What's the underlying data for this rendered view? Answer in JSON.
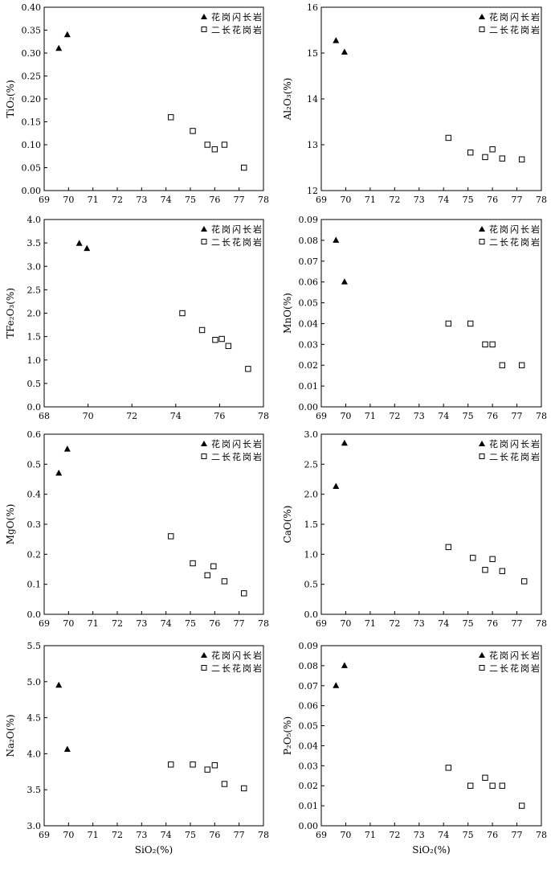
{
  "legend": {
    "granodiorite": "花岗闪长岩",
    "monzogranite": "二长花岗岩"
  },
  "chart_data": [
    {
      "type": "scatter",
      "ylabel": "TiO₂(%)",
      "xlabel": "",
      "xlim": [
        69,
        78
      ],
      "xticks": [
        69,
        70,
        71,
        72,
        73,
        74,
        75,
        76,
        77,
        78
      ],
      "ylim": [
        0,
        0.4
      ],
      "yticks": [
        0,
        0.05,
        0.1,
        0.15,
        0.2,
        0.25,
        0.3,
        0.35,
        0.4
      ],
      "ydec": 2,
      "legend_position": "top-right",
      "series": [
        {
          "name": "花岗闪长岩",
          "marker": "triangle",
          "points": [
            [
              69.6,
              0.31
            ],
            [
              69.95,
              0.34
            ]
          ]
        },
        {
          "name": "二长花岗岩",
          "marker": "square",
          "points": [
            [
              74.2,
              0.16
            ],
            [
              75.1,
              0.13
            ],
            [
              75.7,
              0.1
            ],
            [
              76.0,
              0.09
            ],
            [
              76.4,
              0.1
            ],
            [
              77.2,
              0.05
            ]
          ]
        }
      ]
    },
    {
      "type": "scatter",
      "ylabel": "Al₂O₃(%)",
      "xlabel": "",
      "xlim": [
        69,
        78
      ],
      "xticks": [
        69,
        70,
        71,
        72,
        73,
        74,
        75,
        76,
        77,
        78
      ],
      "ylim": [
        12,
        16
      ],
      "yticks": [
        12,
        13,
        14,
        15,
        16
      ],
      "ydec": 0,
      "legend_position": "top-right",
      "series": [
        {
          "name": "花岗闪长岩",
          "marker": "triangle",
          "points": [
            [
              69.6,
              15.27
            ],
            [
              69.95,
              15.02
            ]
          ]
        },
        {
          "name": "二长花岗岩",
          "marker": "square",
          "points": [
            [
              74.2,
              13.15
            ],
            [
              75.1,
              12.83
            ],
            [
              75.7,
              12.73
            ],
            [
              76.0,
              12.9
            ],
            [
              76.4,
              12.7
            ],
            [
              77.2,
              12.68
            ]
          ]
        }
      ]
    },
    {
      "type": "scatter",
      "ylabel": "TFe₂O₃(%)",
      "xlabel": "",
      "xlim": [
        68,
        78
      ],
      "xticks": [
        68,
        70,
        72,
        74,
        76,
        78
      ],
      "ylim": [
        0,
        4
      ],
      "yticks": [
        0,
        0.5,
        1,
        1.5,
        2,
        2.5,
        3,
        3.5,
        4
      ],
      "ydec": 1,
      "legend_position": "top-right",
      "series": [
        {
          "name": "花岗闪长岩",
          "marker": "triangle",
          "points": [
            [
              69.6,
              3.49
            ],
            [
              69.95,
              3.38
            ]
          ]
        },
        {
          "name": "二长花岗岩",
          "marker": "square",
          "points": [
            [
              74.3,
              2.0
            ],
            [
              75.2,
              1.64
            ],
            [
              75.8,
              1.43
            ],
            [
              76.1,
              1.45
            ],
            [
              76.4,
              1.3
            ],
            [
              77.3,
              0.81
            ]
          ]
        }
      ]
    },
    {
      "type": "scatter",
      "ylabel": "MnO(%)",
      "xlabel": "",
      "xlim": [
        69,
        78
      ],
      "xticks": [
        69,
        70,
        71,
        72,
        73,
        74,
        75,
        76,
        77,
        78
      ],
      "ylim": [
        0,
        0.09
      ],
      "yticks": [
        0,
        0.01,
        0.02,
        0.03,
        0.04,
        0.05,
        0.06,
        0.07,
        0.08,
        0.09
      ],
      "ydec": 2,
      "legend_position": "top-right",
      "series": [
        {
          "name": "花岗闪长岩",
          "marker": "triangle",
          "points": [
            [
              69.6,
              0.08
            ],
            [
              69.95,
              0.06
            ]
          ]
        },
        {
          "name": "二长花岗岩",
          "marker": "square",
          "points": [
            [
              74.2,
              0.04
            ],
            [
              75.1,
              0.04
            ],
            [
              75.7,
              0.03
            ],
            [
              76.0,
              0.03
            ],
            [
              76.4,
              0.02
            ],
            [
              77.2,
              0.02
            ]
          ]
        }
      ]
    },
    {
      "type": "scatter",
      "ylabel": "MgO(%)",
      "xlabel": "",
      "xlim": [
        69,
        78
      ],
      "xticks": [
        69,
        70,
        71,
        72,
        73,
        74,
        75,
        76,
        77,
        78
      ],
      "ylim": [
        0,
        0.6
      ],
      "yticks": [
        0,
        0.1,
        0.2,
        0.3,
        0.4,
        0.5,
        0.6
      ],
      "ydec": 1,
      "legend_position": "top-right",
      "series": [
        {
          "name": "花岗闪长岩",
          "marker": "triangle",
          "points": [
            [
              69.6,
              0.47
            ],
            [
              69.95,
              0.55
            ]
          ]
        },
        {
          "name": "二长花岗岩",
          "marker": "square",
          "points": [
            [
              74.2,
              0.26
            ],
            [
              75.1,
              0.17
            ],
            [
              75.7,
              0.13
            ],
            [
              75.95,
              0.16
            ],
            [
              76.4,
              0.11
            ],
            [
              77.2,
              0.07
            ]
          ]
        }
      ]
    },
    {
      "type": "scatter",
      "ylabel": "CaO(%)",
      "xlabel": "",
      "xlim": [
        69,
        78
      ],
      "xticks": [
        69,
        70,
        71,
        72,
        73,
        74,
        75,
        76,
        77,
        78
      ],
      "ylim": [
        0,
        3
      ],
      "yticks": [
        0,
        0.5,
        1,
        1.5,
        2,
        2.5,
        3
      ],
      "ydec": 1,
      "legend_position": "top-right",
      "series": [
        {
          "name": "花岗闪长岩",
          "marker": "triangle",
          "points": [
            [
              69.6,
              2.13
            ],
            [
              69.95,
              2.85
            ]
          ]
        },
        {
          "name": "二长花岗岩",
          "marker": "square",
          "points": [
            [
              74.2,
              1.12
            ],
            [
              75.2,
              0.94
            ],
            [
              75.7,
              0.74
            ],
            [
              76.0,
              0.92
            ],
            [
              76.4,
              0.72
            ],
            [
              77.3,
              0.55
            ]
          ]
        }
      ]
    },
    {
      "type": "scatter",
      "ylabel": "Na₂O(%)",
      "xlabel": "SiO₂(%)",
      "xlim": [
        69,
        78
      ],
      "xticks": [
        69,
        70,
        71,
        72,
        73,
        74,
        75,
        76,
        77,
        78
      ],
      "ylim": [
        3,
        5.5
      ],
      "yticks": [
        3,
        3.5,
        4,
        4.5,
        5,
        5.5
      ],
      "ydec": 1,
      "legend_position": "top-right",
      "series": [
        {
          "name": "花岗闪长岩",
          "marker": "triangle",
          "points": [
            [
              69.6,
              4.95
            ],
            [
              69.95,
              4.06
            ]
          ]
        },
        {
          "name": "二长花岗岩",
          "marker": "square",
          "points": [
            [
              74.2,
              3.85
            ],
            [
              75.1,
              3.85
            ],
            [
              75.7,
              3.78
            ],
            [
              76.0,
              3.84
            ],
            [
              76.4,
              3.58
            ],
            [
              77.2,
              3.52
            ]
          ]
        }
      ]
    },
    {
      "type": "scatter",
      "ylabel": "P₂O₅(%)",
      "xlabel": "SiO₂(%)",
      "xlim": [
        69,
        78
      ],
      "xticks": [
        69,
        70,
        71,
        72,
        73,
        74,
        75,
        76,
        77,
        78
      ],
      "ylim": [
        0,
        0.09
      ],
      "yticks": [
        0,
        0.01,
        0.02,
        0.03,
        0.04,
        0.05,
        0.06,
        0.07,
        0.08,
        0.09
      ],
      "ydec": 2,
      "legend_position": "top-right",
      "series": [
        {
          "name": "花岗闪长岩",
          "marker": "triangle",
          "points": [
            [
              69.6,
              0.07
            ],
            [
              69.95,
              0.08
            ]
          ]
        },
        {
          "name": "二长花岗岩",
          "marker": "square",
          "points": [
            [
              74.2,
              0.029
            ],
            [
              75.1,
              0.02
            ],
            [
              75.7,
              0.024
            ],
            [
              76.0,
              0.02
            ],
            [
              76.4,
              0.02
            ],
            [
              77.2,
              0.01
            ]
          ]
        }
      ]
    }
  ]
}
